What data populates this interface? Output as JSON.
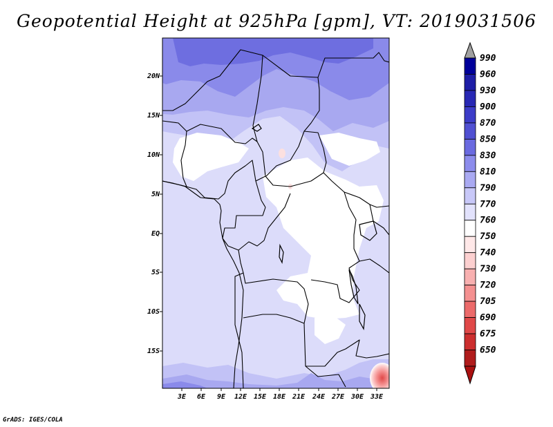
{
  "title": "Geopotential Height at 925hPa [gpm], VT: 2019031506",
  "credit": "GrADS: IGES/COLA",
  "map": {
    "lat_ticks": [
      "20N",
      "15N",
      "10N",
      "5N",
      "EQ",
      "5S",
      "10S",
      "15S"
    ],
    "lon_ticks": [
      "3E",
      "6E",
      "9E",
      "12E",
      "15E",
      "18E",
      "21E",
      "24E",
      "27E",
      "30E",
      "33E"
    ]
  },
  "colorbar": {
    "levels": [
      {
        "label": "990",
        "color": "#00009a"
      },
      {
        "label": "960",
        "color": "#1e1ea6"
      },
      {
        "label": "930",
        "color": "#2828b4"
      },
      {
        "label": "900",
        "color": "#3c3cc8"
      },
      {
        "label": "870",
        "color": "#5050d2"
      },
      {
        "label": "850",
        "color": "#6a6ae0"
      },
      {
        "label": "830",
        "color": "#8c8cec"
      },
      {
        "label": "810",
        "color": "#aaaaf2"
      },
      {
        "label": "790",
        "color": "#c8c8f8"
      },
      {
        "label": "770",
        "color": "#e2e2fc"
      },
      {
        "label": "760",
        "color": "#ffffff"
      },
      {
        "label": "750",
        "color": "#ffe8e8"
      },
      {
        "label": "740",
        "color": "#fcd0d0"
      },
      {
        "label": "730",
        "color": "#f8b0b0"
      },
      {
        "label": "720",
        "color": "#f49090"
      },
      {
        "label": "705",
        "color": "#ec6a6a"
      },
      {
        "label": "690",
        "color": "#e04848"
      },
      {
        "label": "675",
        "color": "#cc2e2e"
      },
      {
        "label": "650",
        "color": "#b01c1c"
      }
    ],
    "top_arrow_color": "#a0a0a0",
    "bottom_arrow_color": "#aa1010"
  }
}
